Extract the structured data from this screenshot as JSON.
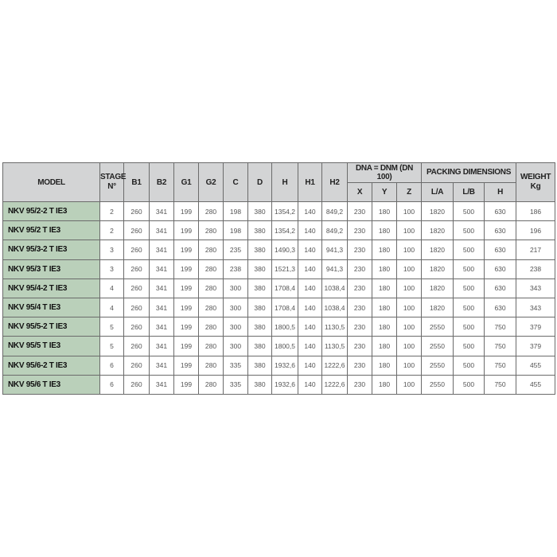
{
  "table": {
    "headers": {
      "model": "MODEL",
      "stage_line1": "STAGE",
      "stage_line2": "N°",
      "b1": "B1",
      "b2": "B2",
      "g1": "G1",
      "g2": "G2",
      "c": "C",
      "d": "D",
      "h": "H",
      "h1": "H1",
      "h2": "H2",
      "dna_group": "DNA = DNM (DN 100)",
      "x": "X",
      "y": "Y",
      "z": "Z",
      "packing_group": "PACKING DIMENSIONS",
      "la": "L/A",
      "lb": "L/B",
      "ph": "H",
      "weight_line1": "WEIGHT",
      "weight_line2": "Kg"
    },
    "rows": [
      [
        "NKV 95/2-2 T IE3",
        "2",
        "260",
        "341",
        "199",
        "280",
        "198",
        "380",
        "1354,2",
        "140",
        "849,2",
        "230",
        "180",
        "100",
        "1820",
        "500",
        "630",
        "186"
      ],
      [
        "NKV 95/2 T IE3",
        "2",
        "260",
        "341",
        "199",
        "280",
        "198",
        "380",
        "1354,2",
        "140",
        "849,2",
        "230",
        "180",
        "100",
        "1820",
        "500",
        "630",
        "196"
      ],
      [
        "NKV 95/3-2 T IE3",
        "3",
        "260",
        "341",
        "199",
        "280",
        "235",
        "380",
        "1490,3",
        "140",
        "941,3",
        "230",
        "180",
        "100",
        "1820",
        "500",
        "630",
        "217"
      ],
      [
        "NKV 95/3 T IE3",
        "3",
        "260",
        "341",
        "199",
        "280",
        "238",
        "380",
        "1521,3",
        "140",
        "941,3",
        "230",
        "180",
        "100",
        "1820",
        "500",
        "630",
        "238"
      ],
      [
        "NKV 95/4-2 T IE3",
        "4",
        "260",
        "341",
        "199",
        "280",
        "300",
        "380",
        "1708,4",
        "140",
        "1038,4",
        "230",
        "180",
        "100",
        "1820",
        "500",
        "630",
        "343"
      ],
      [
        "NKV 95/4 T IE3",
        "4",
        "260",
        "341",
        "199",
        "280",
        "300",
        "380",
        "1708,4",
        "140",
        "1038,4",
        "230",
        "180",
        "100",
        "1820",
        "500",
        "630",
        "343"
      ],
      [
        "NKV 95/5-2 T IE3",
        "5",
        "260",
        "341",
        "199",
        "280",
        "300",
        "380",
        "1800,5",
        "140",
        "1130,5",
        "230",
        "180",
        "100",
        "2550",
        "500",
        "750",
        "379"
      ],
      [
        "NKV 95/5 T IE3",
        "5",
        "260",
        "341",
        "199",
        "280",
        "300",
        "380",
        "1800,5",
        "140",
        "1130,5",
        "230",
        "180",
        "100",
        "2550",
        "500",
        "750",
        "379"
      ],
      [
        "NKV 95/6-2 T IE3",
        "6",
        "260",
        "341",
        "199",
        "280",
        "335",
        "380",
        "1932,6",
        "140",
        "1222,6",
        "230",
        "180",
        "100",
        "2550",
        "500",
        "750",
        "455"
      ],
      [
        "NKV 95/6 T IE3",
        "6",
        "260",
        "341",
        "199",
        "280",
        "335",
        "380",
        "1932,6",
        "140",
        "1222,6",
        "230",
        "180",
        "100",
        "2550",
        "500",
        "750",
        "455"
      ]
    ]
  },
  "colors": {
    "header_bg": "#d3d4d5",
    "model_bg": "#bad0ba",
    "border": "#6b6b6b"
  }
}
